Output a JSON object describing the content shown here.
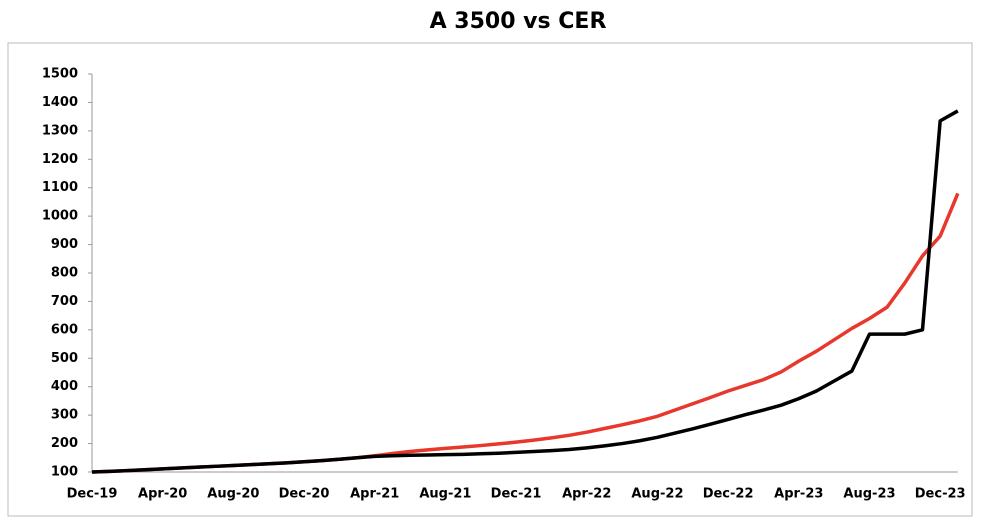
{
  "chart_data": {
    "type": "line",
    "title": "A 3500 vs CER",
    "categories": [
      "Dec-19",
      null,
      null,
      null,
      "Apr-20",
      null,
      null,
      null,
      "Aug-20",
      null,
      null,
      null,
      "Dec-20",
      null,
      null,
      null,
      "Apr-21",
      null,
      null,
      null,
      "Aug-21",
      null,
      null,
      null,
      "Dec-21",
      null,
      null,
      null,
      "Apr-22",
      null,
      null,
      null,
      "Aug-22",
      null,
      null,
      null,
      "Dec-22",
      null,
      null,
      null,
      "Apr-23",
      null,
      null,
      null,
      "Aug-23",
      null,
      null,
      null,
      "Dec-23",
      null
    ],
    "series": [
      {
        "color": "#e8372c",
        "values": [
          100,
          102,
          105,
          108,
          111,
          114,
          117,
          120,
          123,
          126,
          129,
          132,
          136,
          140,
          145,
          150,
          157,
          165,
          172,
          178,
          183,
          188,
          193,
          199,
          205,
          212,
          220,
          229,
          240,
          253,
          266,
          280,
          296,
          318,
          340,
          362,
          385,
          405,
          425,
          452,
          490,
          525,
          565,
          605,
          640,
          680,
          765,
          860,
          930,
          1080
        ]
      },
      {
        "color": "#000000",
        "values": [
          100,
          102,
          105,
          108,
          111,
          114,
          117,
          120,
          123,
          126,
          129,
          132,
          136,
          140,
          145,
          150,
          155,
          157,
          159,
          160,
          161,
          162,
          164,
          166,
          169,
          172,
          175,
          179,
          185,
          192,
          200,
          210,
          222,
          237,
          252,
          268,
          285,
          302,
          318,
          335,
          358,
          385,
          420,
          455,
          585,
          585,
          585,
          600,
          1335,
          1370
        ]
      }
    ],
    "ylim": [
      100,
      1500
    ],
    "yticks": [
      100,
      200,
      300,
      400,
      500,
      600,
      700,
      800,
      900,
      1000,
      1100,
      1200,
      1300,
      1400,
      1500
    ]
  }
}
